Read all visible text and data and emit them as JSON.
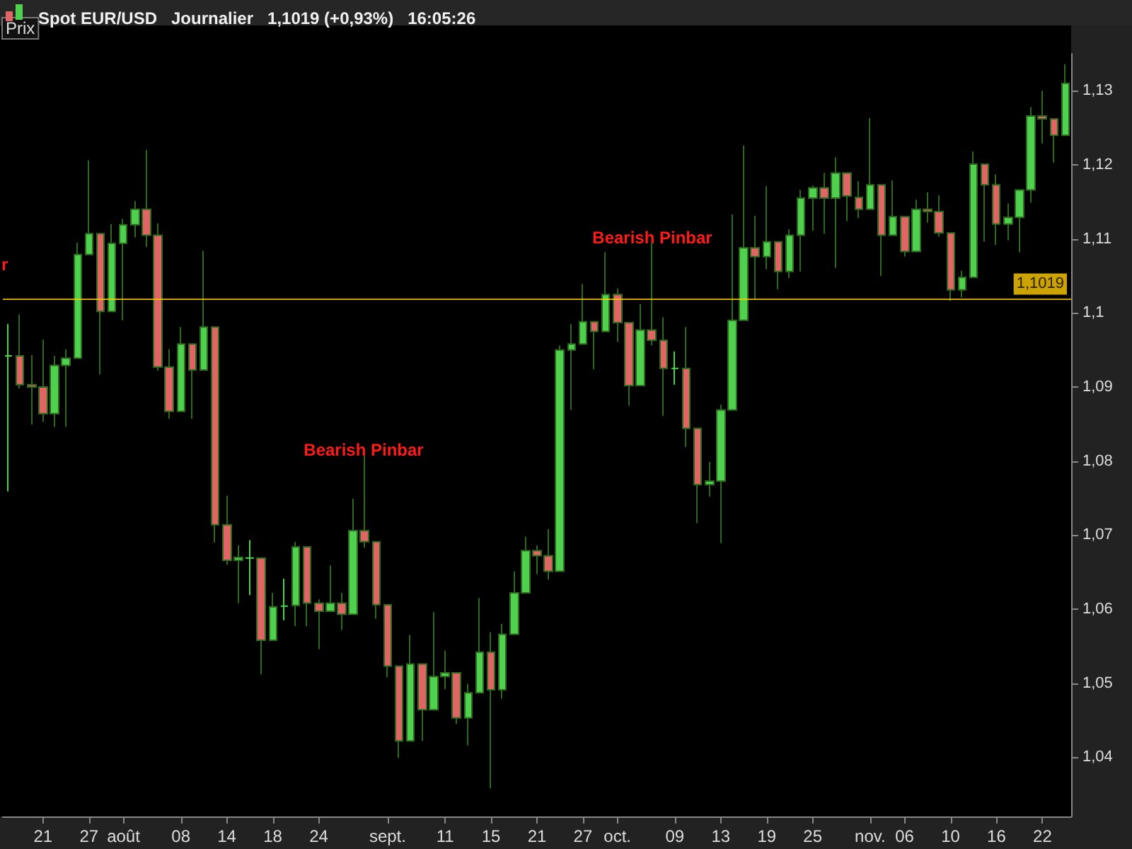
{
  "chart_data": {
    "type": "candlestick",
    "title": "Spot EUR/USD   Journalier   1,1019 (+0,93%)   16:05:26",
    "annotations": [
      "Prix",
      "r",
      "Bearish Pinbar",
      "Bearish Pinbar"
    ],
    "categories": [
      null,
      null,
      null,
      "21",
      null,
      null,
      null,
      "27",
      null,
      null,
      "août",
      null,
      null,
      null,
      null,
      "08",
      null,
      null,
      null,
      "14",
      null,
      null,
      null,
      "18",
      null,
      null,
      null,
      "24",
      null,
      null,
      null,
      null,
      null,
      "sept.",
      null,
      null,
      null,
      null,
      "11",
      null,
      null,
      null,
      "15",
      null,
      null,
      null,
      "21",
      null,
      null,
      null,
      "27",
      null,
      null,
      "oct.",
      null,
      null,
      null,
      null,
      "09",
      null,
      null,
      null,
      "13",
      null,
      null,
      null,
      "19",
      null,
      null,
      null,
      "25",
      null,
      null,
      null,
      null,
      "nov.",
      null,
      null,
      "06",
      null,
      null,
      null,
      "10",
      null,
      null,
      null,
      "16",
      null,
      null,
      null,
      "22",
      null,
      null
    ],
    "ohlc": [
      [
        1.0942,
        1.0985,
        1.0759,
        1.0942
      ],
      [
        1.0942,
        1.0998,
        1.0898,
        1.0903
      ],
      [
        1.0903,
        1.0943,
        1.0849,
        1.09
      ],
      [
        1.09,
        1.0964,
        1.0853,
        1.0864
      ],
      [
        1.0864,
        1.0942,
        1.0846,
        1.0929
      ],
      [
        1.0929,
        1.0951,
        1.0846,
        1.0939
      ],
      [
        1.0939,
        1.1095,
        1.0939,
        1.1079
      ],
      [
        1.1079,
        1.1206,
        1.1079,
        1.1107
      ],
      [
        1.1107,
        1.1107,
        1.0917,
        1.1002
      ],
      [
        1.1002,
        1.112,
        1.1002,
        1.1094
      ],
      [
        1.1094,
        1.1127,
        1.099,
        1.1119
      ],
      [
        1.1119,
        1.1151,
        1.1102,
        1.114
      ],
      [
        1.114,
        1.122,
        1.1089,
        1.1105
      ],
      [
        1.1105,
        1.1121,
        1.0922,
        1.0927
      ],
      [
        1.0927,
        1.0951,
        1.0857,
        1.0867
      ],
      [
        1.0867,
        1.0981,
        1.0867,
        1.0958
      ],
      [
        1.0958,
        1.0958,
        1.0857,
        1.0923
      ],
      [
        1.0923,
        1.1084,
        1.0923,
        1.0981
      ],
      [
        1.0981,
        1.0981,
        1.069,
        1.0714
      ],
      [
        1.0714,
        1.0753,
        1.066,
        1.0666
      ],
      [
        1.0666,
        1.0686,
        1.0608,
        1.067
      ],
      [
        1.0669,
        1.0693,
        1.0619,
        1.0669
      ],
      [
        1.0669,
        1.0669,
        1.0512,
        1.0558
      ],
      [
        1.0558,
        1.0622,
        1.0558,
        1.0603
      ],
      [
        1.0604,
        1.0641,
        1.0585,
        1.0604
      ],
      [
        1.0605,
        1.0691,
        1.0577,
        1.0684
      ],
      [
        1.0684,
        1.0684,
        1.0577,
        1.0608
      ],
      [
        1.0608,
        1.0613,
        1.0546,
        1.0597
      ],
      [
        1.0597,
        1.0659,
        1.0597,
        1.0608
      ],
      [
        1.0608,
        1.0622,
        1.0572,
        1.0593
      ],
      [
        1.0593,
        1.0749,
        1.0593,
        1.0706
      ],
      [
        1.0706,
        1.0807,
        1.0683,
        1.0691
      ],
      [
        1.0691,
        1.0691,
        1.0587,
        1.0606
      ],
      [
        1.0606,
        1.0606,
        1.0508,
        1.0523
      ],
      [
        1.0523,
        1.0523,
        1.0399,
        1.0422
      ],
      [
        1.0422,
        1.0565,
        1.0422,
        1.0526
      ],
      [
        1.0526,
        1.0526,
        1.0422,
        1.0464
      ],
      [
        1.0464,
        1.0596,
        1.0464,
        1.0509
      ],
      [
        1.0509,
        1.0544,
        1.0492,
        1.0514
      ],
      [
        1.0514,
        1.0514,
        1.0445,
        1.0453
      ],
      [
        1.0453,
        1.0499,
        1.0416,
        1.0487
      ],
      [
        1.0487,
        1.0615,
        1.0487,
        1.0542
      ],
      [
        1.0542,
        1.0569,
        1.0358,
        1.0491
      ],
      [
        1.0491,
        1.058,
        1.0479,
        1.0566
      ],
      [
        1.0566,
        1.0651,
        1.0566,
        1.0622
      ],
      [
        1.0622,
        1.0698,
        1.0622,
        1.0679
      ],
      [
        1.0679,
        1.0686,
        1.0647,
        1.0672
      ],
      [
        1.0672,
        1.0708,
        1.064,
        1.0651
      ],
      [
        1.0651,
        1.0956,
        1.0651,
        1.095
      ],
      [
        1.095,
        1.0985,
        1.0869,
        1.0958
      ],
      [
        1.0958,
        1.1039,
        1.0958,
        1.0988
      ],
      [
        1.0988,
        1.0988,
        1.0924,
        1.0975
      ],
      [
        1.0975,
        1.1082,
        1.0975,
        1.1025
      ],
      [
        1.1025,
        1.1033,
        1.0961,
        1.0987
      ],
      [
        1.0987,
        1.0987,
        1.0875,
        1.0902
      ],
      [
        1.0902,
        1.1012,
        1.0902,
        1.0977
      ],
      [
        1.0977,
        1.1095,
        1.0956,
        1.0963
      ],
      [
        1.0963,
        1.0994,
        1.0861,
        1.0925
      ],
      [
        1.0925,
        1.0948,
        1.0903,
        1.0925
      ],
      [
        1.0925,
        1.0981,
        1.0819,
        1.0844
      ],
      [
        1.0844,
        1.0844,
        1.0716,
        1.0768
      ],
      [
        1.0768,
        1.0799,
        1.0752,
        1.0773
      ],
      [
        1.0773,
        1.0876,
        1.0689,
        1.0869
      ],
      [
        1.0869,
        1.1133,
        1.0869,
        1.099
      ],
      [
        1.099,
        1.1226,
        1.099,
        1.1088
      ],
      [
        1.1088,
        1.1131,
        1.1018,
        1.1076
      ],
      [
        1.1076,
        1.1171,
        1.1059,
        1.1096
      ],
      [
        1.1096,
        1.1096,
        1.1032,
        1.1056
      ],
      [
        1.1056,
        1.1113,
        1.1047,
        1.1105
      ],
      [
        1.1105,
        1.1166,
        1.1056,
        1.1155
      ],
      [
        1.1155,
        1.1172,
        1.1111,
        1.1169
      ],
      [
        1.1169,
        1.1189,
        1.1107,
        1.1155
      ],
      [
        1.1155,
        1.121,
        1.1061,
        1.1189
      ],
      [
        1.1189,
        1.1189,
        1.1124,
        1.1158
      ],
      [
        1.1156,
        1.1178,
        1.1128,
        1.114
      ],
      [
        1.114,
        1.1263,
        1.114,
        1.1173
      ],
      [
        1.1173,
        1.1173,
        1.105,
        1.1105
      ],
      [
        1.1105,
        1.1179,
        1.1105,
        1.113
      ],
      [
        1.113,
        1.113,
        1.1076,
        1.1083
      ],
      [
        1.1083,
        1.1153,
        1.1083,
        1.114
      ],
      [
        1.114,
        1.1163,
        1.1122,
        1.1137
      ],
      [
        1.1137,
        1.1159,
        1.1103,
        1.1108
      ],
      [
        1.1108,
        1.1108,
        1.1016,
        1.1031
      ],
      [
        1.1031,
        1.1057,
        1.1021,
        1.1048
      ],
      [
        1.1048,
        1.1218,
        1.1048,
        1.1201
      ],
      [
        1.1201,
        1.1201,
        1.1096,
        1.1173
      ],
      [
        1.1173,
        1.1187,
        1.1092,
        1.112
      ],
      [
        1.112,
        1.1148,
        1.1098,
        1.1129
      ],
      [
        1.1129,
        1.1166,
        1.1082,
        1.1166
      ],
      [
        1.1166,
        1.1278,
        1.1149,
        1.1266
      ],
      [
        1.1266,
        1.13,
        1.1229,
        1.1262
      ],
      [
        1.1262,
        1.1262,
        1.1203,
        1.124
      ],
      [
        1.124,
        1.1336,
        1.124,
        1.131
      ]
    ],
    "colors": [
      "#4fd14f",
      "#e06666",
      "#e06666",
      "#e06666",
      "#4fd14f",
      "#4fd14f",
      "#4fd14f",
      "#4fd14f",
      "#e06666",
      "#4fd14f",
      "#4fd14f",
      "#4fd14f",
      "#e06666",
      "#e06666",
      "#e06666",
      "#4fd14f",
      "#e06666",
      "#4fd14f",
      "#e06666",
      "#e06666",
      "#4fd14f",
      "#4fd14f",
      "#e06666",
      "#4fd14f",
      "#4fd14f",
      "#4fd14f",
      "#e06666",
      "#e06666",
      "#4fd14f",
      "#e06666",
      "#4fd14f",
      "#e06666",
      "#e06666",
      "#e06666",
      "#e06666",
      "#4fd14f",
      "#e06666",
      "#4fd14f",
      "#4fd14f",
      "#e06666",
      "#4fd14f",
      "#4fd14f",
      "#e06666",
      "#4fd14f",
      "#4fd14f",
      "#4fd14f",
      "#e06666",
      "#e06666",
      "#4fd14f",
      "#4fd14f",
      "#4fd14f",
      "#e06666",
      "#4fd14f",
      "#e06666",
      "#e06666",
      "#4fd14f",
      "#e06666",
      "#e06666",
      "#4fd14f",
      "#e06666",
      "#e06666",
      "#4fd14f",
      "#4fd14f",
      "#4fd14f",
      "#4fd14f",
      "#e06666",
      "#4fd14f",
      "#e06666",
      "#4fd14f",
      "#4fd14f",
      "#4fd14f",
      "#e06666",
      "#4fd14f",
      "#e06666",
      "#e06666",
      "#4fd14f",
      "#e06666",
      "#4fd14f",
      "#e06666",
      "#4fd14f",
      "#e06666",
      "#e06666",
      "#e06666",
      "#4fd14f",
      "#4fd14f",
      "#e06666",
      "#e06666",
      "#4fd14f",
      "#4fd14f",
      "#4fd14f",
      "#e06666",
      "#e06666",
      "#4fd14f"
    ],
    "ylim": [
      1.032,
      1.135
    ],
    "yticks": [
      {
        "value": 1.04,
        "label": "1,04"
      },
      {
        "value": 1.05,
        "label": "1,05"
      },
      {
        "value": 1.06,
        "label": "1,06"
      },
      {
        "value": 1.07,
        "label": "1,07"
      },
      {
        "value": 1.08,
        "label": "1,08"
      },
      {
        "value": 1.09,
        "label": "1,09"
      },
      {
        "value": 1.1,
        "label": "1,1"
      },
      {
        "value": 1.11,
        "label": "1,11"
      },
      {
        "value": 1.12,
        "label": "1,12"
      },
      {
        "value": 1.13,
        "label": "1,13"
      }
    ],
    "ref_lines": [
      {
        "axis": "y",
        "value": 1.1019,
        "label": "1,1019",
        "color": "#ffcc00"
      }
    ],
    "grid": false
  }
}
